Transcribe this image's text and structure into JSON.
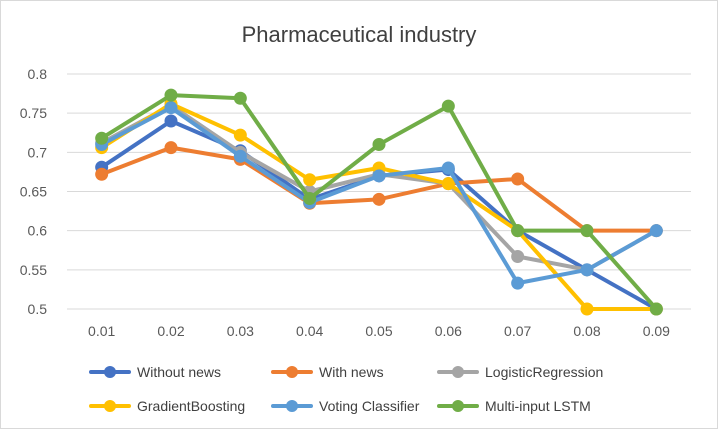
{
  "chart_data": {
    "type": "line",
    "title": "Pharmaceutical industry",
    "xlabel": "",
    "ylabel": "",
    "x": [
      "0.01",
      "0.02",
      "0.03",
      "0.04",
      "0.05",
      "0.06",
      "0.07",
      "0.08",
      "0.09"
    ],
    "ylim": [
      0.5,
      0.8
    ],
    "yticks": [
      "0.5",
      "0.55",
      "0.6",
      "0.65",
      "0.7",
      "0.75",
      "0.8"
    ],
    "grid": true,
    "legend_position": "bottom",
    "series": [
      {
        "name": "Without news",
        "color": "#4472C4",
        "values": [
          0.681,
          0.74,
          0.702,
          0.64,
          0.67,
          0.678,
          0.6,
          0.55,
          0.5
        ]
      },
      {
        "name": "With news",
        "color": "#ED7D31",
        "values": [
          0.672,
          0.706,
          0.691,
          0.635,
          0.64,
          0.66,
          0.666,
          0.6,
          0.6
        ]
      },
      {
        "name": "LogisticRegression",
        "color": "#A5A5A5",
        "values": [
          0.712,
          0.76,
          0.7,
          0.65,
          0.672,
          0.66,
          0.567,
          0.55,
          0.6
        ]
      },
      {
        "name": "GradientBoosting",
        "color": "#FFC000",
        "values": [
          0.706,
          0.762,
          0.722,
          0.665,
          0.68,
          0.66,
          0.6,
          0.5,
          0.5
        ]
      },
      {
        "name": "Voting Classifier",
        "color": "#5B9BD5",
        "values": [
          0.71,
          0.757,
          0.695,
          0.636,
          0.67,
          0.68,
          0.533,
          0.55,
          0.6
        ]
      },
      {
        "name": "Multi-input LSTM",
        "color": "#70AD47",
        "values": [
          0.718,
          0.773,
          0.769,
          0.641,
          0.71,
          0.759,
          0.6,
          0.6,
          0.5
        ]
      }
    ]
  }
}
